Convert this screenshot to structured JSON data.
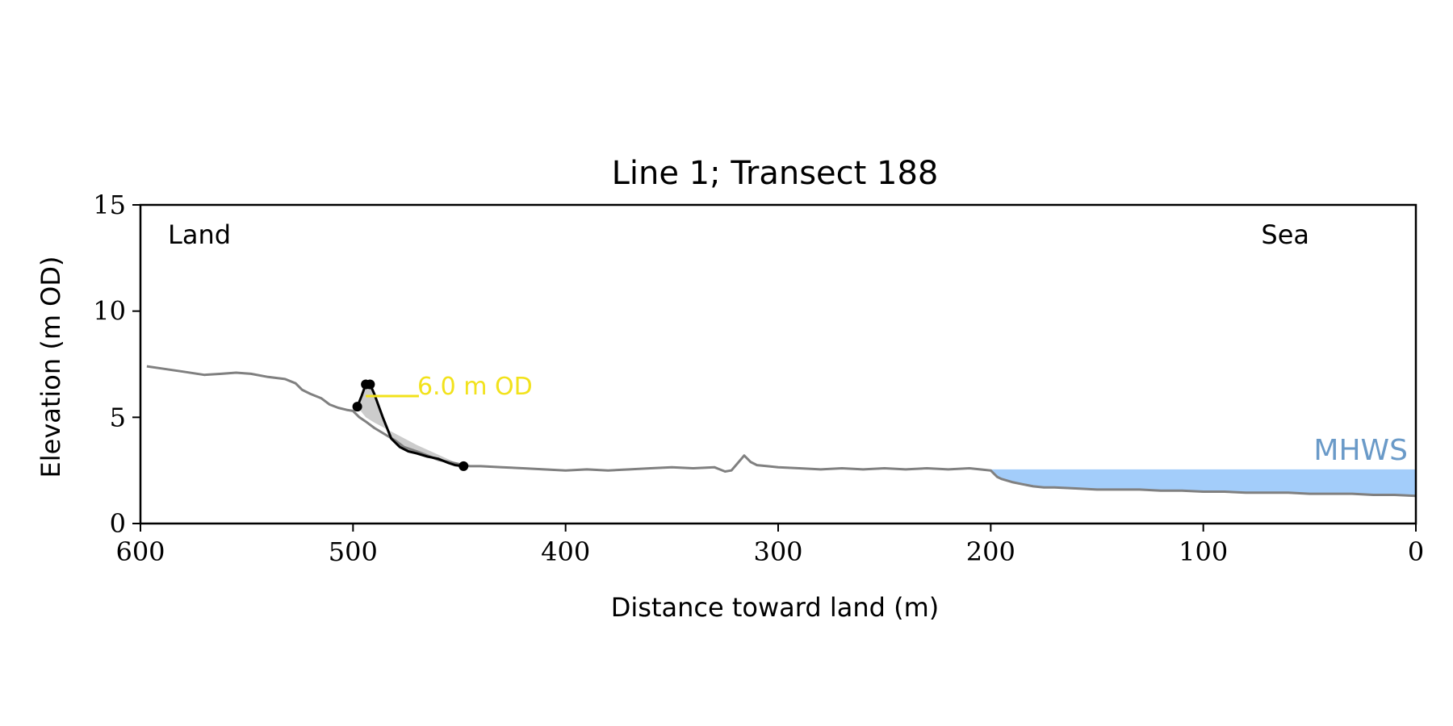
{
  "chart_data": {
    "type": "line",
    "title": "Line 1; Transect 188",
    "xlabel": "Distance toward land (m)",
    "ylabel": "Elevation (m OD)",
    "xlim": [
      600,
      0
    ],
    "ylim": [
      0,
      15
    ],
    "x_ticks": [
      600,
      500,
      400,
      300,
      200,
      100,
      0
    ],
    "y_ticks": [
      0,
      5,
      10,
      15
    ],
    "grid": false,
    "corner_labels": {
      "left": "Land",
      "right": "Sea"
    },
    "profile": {
      "color": "#808080",
      "x": [
        597,
        590,
        580,
        570,
        562,
        555,
        548,
        540,
        532,
        527,
        524,
        520,
        515,
        511,
        507,
        503,
        500,
        497,
        494,
        490,
        485,
        480,
        476,
        470,
        465,
        460,
        455,
        450,
        445,
        440,
        430,
        420,
        410,
        400,
        390,
        380,
        370,
        360,
        350,
        340,
        330,
        325,
        322,
        319,
        316,
        313,
        310,
        305,
        300,
        290,
        280,
        270,
        260,
        250,
        240,
        230,
        220,
        210,
        205,
        200,
        197,
        195,
        190,
        185,
        180,
        175,
        170,
        160,
        150,
        140,
        130,
        120,
        110,
        100,
        90,
        80,
        70,
        60,
        50,
        40,
        30,
        20,
        10,
        0
      ],
      "y": [
        7.4,
        7.3,
        7.15,
        7.0,
        7.05,
        7.1,
        7.05,
        6.9,
        6.8,
        6.6,
        6.3,
        6.1,
        5.9,
        5.6,
        5.45,
        5.35,
        5.3,
        5.0,
        4.8,
        4.5,
        4.2,
        3.9,
        3.6,
        3.4,
        3.2,
        3.0,
        2.9,
        2.8,
        2.7,
        2.7,
        2.65,
        2.6,
        2.55,
        2.5,
        2.55,
        2.5,
        2.55,
        2.6,
        2.65,
        2.6,
        2.65,
        2.45,
        2.5,
        2.85,
        3.2,
        2.9,
        2.75,
        2.7,
        2.65,
        2.6,
        2.55,
        2.6,
        2.55,
        2.6,
        2.55,
        2.6,
        2.55,
        2.6,
        2.55,
        2.5,
        2.2,
        2.1,
        1.95,
        1.85,
        1.75,
        1.7,
        1.7,
        1.65,
        1.6,
        1.6,
        1.6,
        1.55,
        1.55,
        1.5,
        1.5,
        1.45,
        1.45,
        1.45,
        1.4,
        1.4,
        1.4,
        1.35,
        1.35,
        1.3
      ]
    },
    "dune": {
      "color": "#000000",
      "x": [
        498,
        496,
        494,
        492,
        490,
        486,
        482,
        478,
        474,
        470,
        465,
        460,
        455,
        452,
        448
      ],
      "y": [
        5.5,
        6.0,
        6.55,
        6.55,
        6.1,
        5.0,
        4.0,
        3.6,
        3.4,
        3.3,
        3.15,
        3.05,
        2.85,
        2.75,
        2.7
      ]
    },
    "dune_markers": [
      {
        "x": 498,
        "y": 5.5
      },
      {
        "x": 494,
        "y": 6.55
      },
      {
        "x": 492,
        "y": 6.55
      },
      {
        "x": 448,
        "y": 2.7
      }
    ],
    "shaded_area": {
      "color": "#cccccc",
      "x": [
        498,
        496,
        494,
        492,
        490,
        486,
        482,
        478,
        474,
        470,
        465,
        460,
        455,
        452,
        448,
        470,
        490,
        494
      ],
      "y": [
        5.5,
        6.0,
        6.55,
        6.55,
        6.1,
        5.0,
        4.0,
        3.6,
        3.4,
        3.3,
        3.15,
        3.05,
        2.85,
        2.75,
        2.7,
        3.7,
        4.75,
        5.0
      ]
    },
    "threshold": {
      "label": "6.0 m OD",
      "value": 6.0,
      "x_start": 494,
      "x_end": 469,
      "color": "#f2e21b"
    },
    "mhws": {
      "label": "MHWS",
      "level": 2.55,
      "x_start": 200,
      "x_end": 0,
      "fill_color": "#a3cdfa",
      "label_color": "#6a9ac8"
    }
  }
}
